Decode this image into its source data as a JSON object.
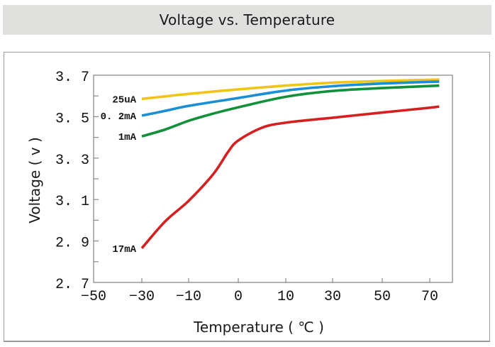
{
  "chart_data": {
    "type": "line",
    "title": "Voltage vs. Temperature",
    "xlabel": "Temperature ( ℃ )",
    "ylabel": "Voltage ( v )",
    "x_ticks": [
      -50,
      -30,
      -10,
      0,
      10,
      30,
      50,
      70
    ],
    "x_tick_labels": [
      "−50",
      "−30",
      "−10",
      "0",
      "10",
      "30",
      "50",
      "70"
    ],
    "x_scale_note": "non-uniform spacing between ticks",
    "y_tick_labels": [
      "3. 7",
      "3. 5",
      "3. 3",
      "3. 1",
      "2. 9",
      "2. 7"
    ],
    "y_ticks": [
      3.7,
      3.5,
      3.3,
      3.1,
      2.9,
      2.7
    ],
    "y_minor_ticks": [
      3.6,
      3.4,
      3.2,
      3.0,
      2.8
    ],
    "ylim": [
      2.7,
      3.7
    ],
    "xlim": [
      -50,
      79
    ],
    "grid": false,
    "legend": "inline labels at left end of each curve",
    "series": [
      {
        "name": "25uA",
        "color": "#f0c419",
        "x": [
          -30,
          -20,
          -10,
          0,
          10,
          30,
          50,
          70,
          74
        ],
        "values": [
          3.586,
          3.598,
          3.61,
          3.632,
          3.65,
          3.664,
          3.672,
          3.678,
          3.679
        ]
      },
      {
        "name": "0.2mA",
        "color": "#1a8fd6",
        "x": [
          -30,
          -20,
          -10,
          0,
          10,
          30,
          50,
          70,
          74
        ],
        "values": [
          3.505,
          3.528,
          3.552,
          3.59,
          3.626,
          3.647,
          3.66,
          3.668,
          3.669
        ]
      },
      {
        "name": "1mA",
        "color": "#12913a",
        "x": [
          -30,
          -20,
          -10,
          -5,
          0,
          10,
          30,
          50,
          70,
          74
        ],
        "values": [
          3.405,
          3.438,
          3.48,
          3.515,
          3.545,
          3.596,
          3.624,
          3.638,
          3.648,
          3.65
        ]
      },
      {
        "name": "17mA",
        "color": "#d42020",
        "x": [
          -30,
          -20,
          -10,
          -5,
          -2,
          0,
          5,
          10,
          30,
          50,
          70,
          74
        ],
        "values": [
          2.865,
          2.995,
          3.094,
          3.224,
          3.332,
          3.385,
          3.447,
          3.471,
          3.495,
          3.52,
          3.543,
          3.549
        ]
      }
    ],
    "series_labels": [
      "25uA",
      "0. 2mA",
      "1mA",
      "17mA"
    ]
  }
}
